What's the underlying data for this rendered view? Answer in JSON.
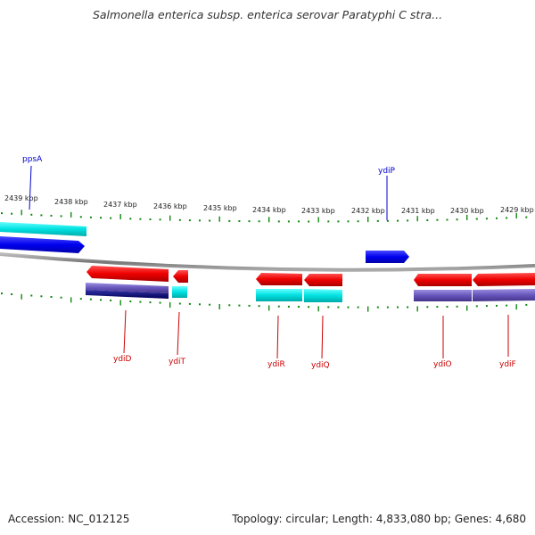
{
  "header": {
    "title": "Salmonella enterica subsp. enterica serovar Paratyphi C stra..."
  },
  "footer": {
    "accession": "Accession: NC_012125",
    "summary": "Topology: circular; Length: 4,833,080 bp; Genes: 4,680"
  },
  "ruler": {
    "labels": [
      "2439 kbp",
      "2438 kbp",
      "2437 kbp",
      "2436 kbp",
      "2435 kbp",
      "2434 kbp",
      "2433 kbp",
      "2432 kbp",
      "2431 kbp",
      "2430 kbp",
      "2429 kbp"
    ]
  },
  "genes": {
    "forward_labels": [
      {
        "name": "ppsA",
        "color": "#0000cc"
      },
      {
        "name": "ydiP",
        "color": "#0000cc"
      }
    ],
    "reverse_labels": [
      {
        "name": "ydiD",
        "color": "#cc0000"
      },
      {
        "name": "ydiT",
        "color": "#cc0000"
      },
      {
        "name": "ydiR",
        "color": "#cc0000"
      },
      {
        "name": "ydiQ",
        "color": "#cc0000"
      },
      {
        "name": "ydiO",
        "color": "#cc0000"
      },
      {
        "name": "ydiF",
        "color": "#cc0000"
      }
    ]
  },
  "colors": {
    "forward_gene": "#0000ee",
    "reverse_gene": "#ee0000",
    "cyan_track": "#00dddd",
    "purple_track": "#6655bb",
    "tick_green": "#118811",
    "backbone": "#888888"
  }
}
